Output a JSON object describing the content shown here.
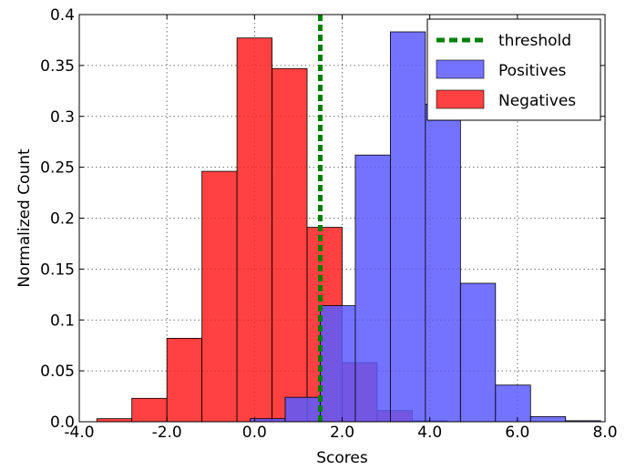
{
  "chart_data": {
    "type": "bar",
    "xlabel": "Scores",
    "ylabel": "Normalized Count",
    "xlim": [
      -4.0,
      8.0
    ],
    "ylim": [
      0.0,
      0.4
    ],
    "x_ticks": [
      -4.0,
      -2.0,
      0.0,
      2.0,
      4.0,
      6.0,
      8.0
    ],
    "x_tick_labels": [
      "-4.0",
      "-2.0",
      "0.0",
      "2.0",
      "4.0",
      "6.0",
      "8.0"
    ],
    "y_ticks": [
      0.0,
      0.05,
      0.1,
      0.15,
      0.2,
      0.25,
      0.3,
      0.35,
      0.4
    ],
    "y_tick_labels": [
      "0.0",
      "0.05",
      "0.1",
      "0.15",
      "0.2",
      "0.25",
      "0.3",
      "0.35",
      "0.4"
    ],
    "grid": true,
    "legend_position": "top-right",
    "threshold": {
      "name": "threshold",
      "x": 1.5,
      "color": "#008000",
      "style": "dashed"
    },
    "series": [
      {
        "name": "Positives",
        "color": "#5b5bff",
        "bins": [
          {
            "x0": -0.1,
            "x1": 0.7,
            "value": 0.003
          },
          {
            "x0": 0.7,
            "x1": 1.5,
            "value": 0.024
          },
          {
            "x0": 1.5,
            "x1": 2.3,
            "value": 0.114
          },
          {
            "x0": 2.3,
            "x1": 3.1,
            "value": 0.262
          },
          {
            "x0": 3.1,
            "x1": 3.9,
            "value": 0.383
          },
          {
            "x0": 3.9,
            "x1": 4.7,
            "value": 0.312
          },
          {
            "x0": 4.7,
            "x1": 5.5,
            "value": 0.136
          },
          {
            "x0": 5.5,
            "x1": 6.3,
            "value": 0.036
          },
          {
            "x0": 6.3,
            "x1": 7.1,
            "value": 0.005
          },
          {
            "x0": 7.1,
            "x1": 7.9,
            "value": 0.001
          }
        ]
      },
      {
        "name": "Negatives",
        "color": "#ff2020",
        "bins": [
          {
            "x0": -3.6,
            "x1": -2.8,
            "value": 0.003
          },
          {
            "x0": -2.8,
            "x1": -2.0,
            "value": 0.023
          },
          {
            "x0": -2.0,
            "x1": -1.2,
            "value": 0.082
          },
          {
            "x0": -1.2,
            "x1": -0.4,
            "value": 0.246
          },
          {
            "x0": -0.4,
            "x1": 0.4,
            "value": 0.377
          },
          {
            "x0": 0.4,
            "x1": 1.2,
            "value": 0.347
          },
          {
            "x0": 1.2,
            "x1": 2.0,
            "value": 0.191
          },
          {
            "x0": 2.0,
            "x1": 2.8,
            "value": 0.058
          },
          {
            "x0": 2.8,
            "x1": 3.6,
            "value": 0.011
          },
          {
            "x0": 3.6,
            "x1": 4.4,
            "value": 0.001
          }
        ]
      }
    ]
  }
}
